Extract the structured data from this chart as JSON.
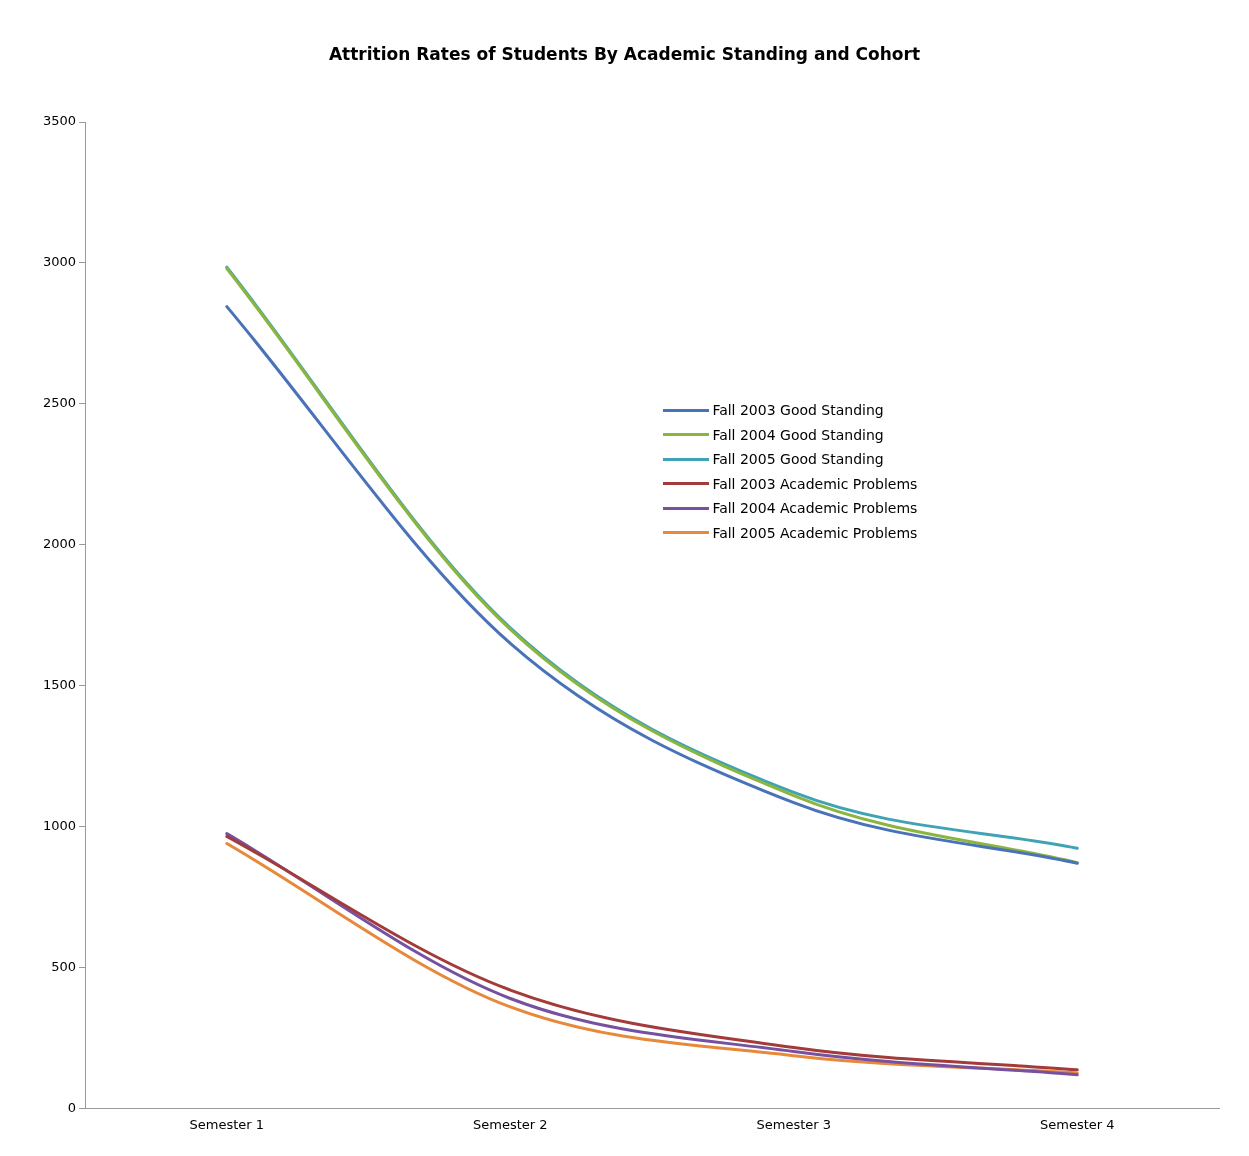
{
  "chart_data": {
    "type": "line",
    "title": "Attrition Rates of Students By Academic Standing and Cohort",
    "categories": [
      "Semester 1",
      "Semester 2",
      "Semester 3",
      "Semester 4"
    ],
    "series": [
      {
        "name": "Fall 2003 Good Standing",
        "color": "#4a72b8",
        "values": [
          2845,
          1650,
          1085,
          870
        ]
      },
      {
        "name": "Fall 2004 Good Standing",
        "color": "#8bb53f",
        "values": [
          2980,
          1700,
          1110,
          872
        ]
      },
      {
        "name": "Fall 2005 Good Standing",
        "color": "#3fa3b5",
        "values": [
          2985,
          1705,
          1121,
          923
        ]
      },
      {
        "name": "Fall 2003 Academic Problems",
        "color": "#a33b3a",
        "values": [
          965,
          420,
          216,
          137
        ]
      },
      {
        "name": "Fall 2004 Academic Problems",
        "color": "#7651a0",
        "values": [
          975,
          390,
          202,
          119
        ]
      },
      {
        "name": "Fall 2005 Academic Problems",
        "color": "#e8883a",
        "values": [
          940,
          360,
          187,
          126
        ]
      }
    ],
    "ylim": [
      0,
      3500
    ],
    "yticks": [
      0,
      500,
      1000,
      1500,
      2000,
      2500,
      3000,
      3500
    ],
    "grid": false,
    "legend": "right",
    "marker": "none",
    "line_style": "solid"
  }
}
